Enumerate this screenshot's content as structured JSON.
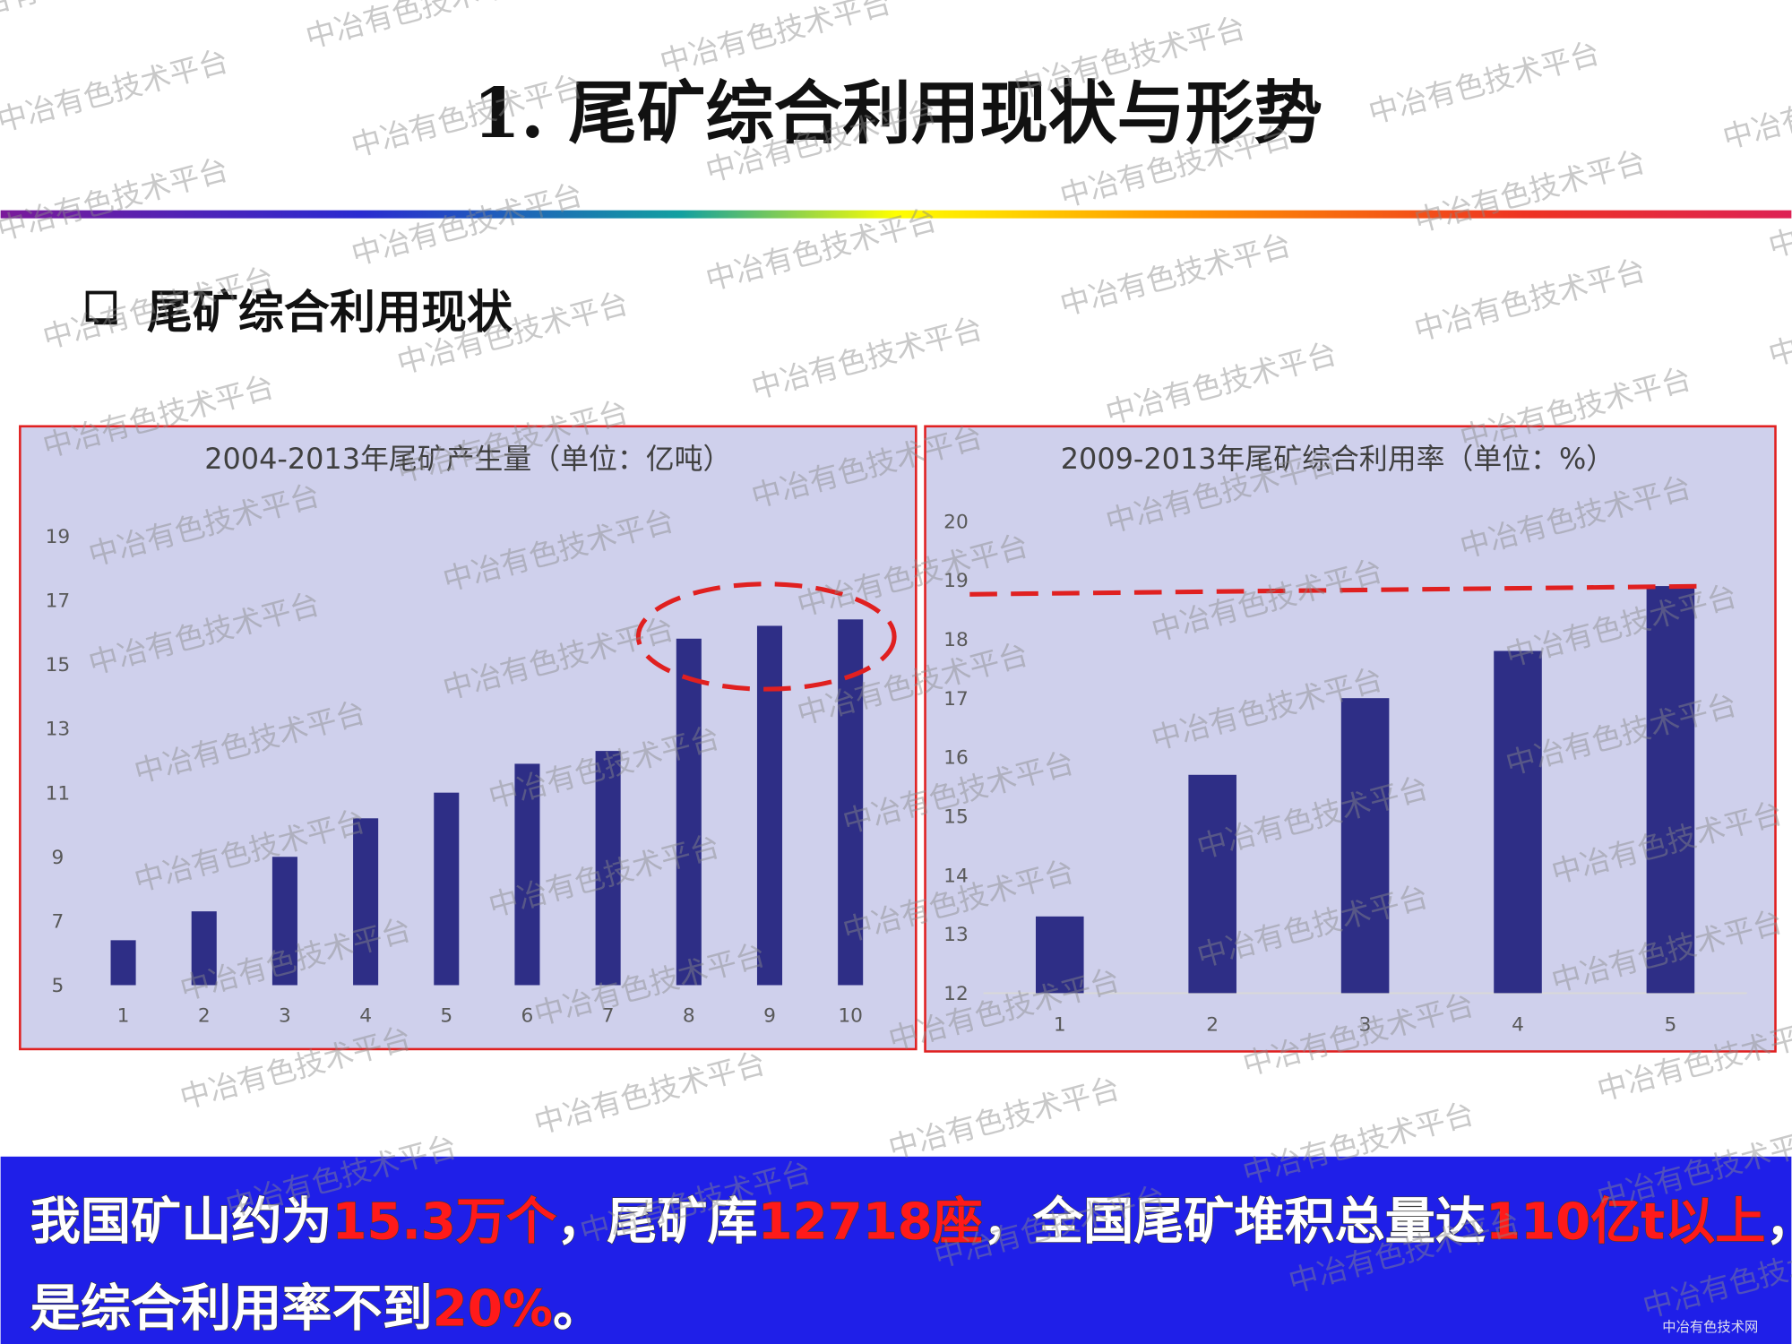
{
  "header": {
    "title": "1.  尾矿综合利用现状与形势"
  },
  "section": {
    "heading": "尾矿综合利用现状"
  },
  "chart_data": [
    {
      "type": "bar",
      "title": "2004-2013年尾矿产生量（单位：亿吨）",
      "categories": [
        "1",
        "2",
        "3",
        "4",
        "5",
        "6",
        "7",
        "8",
        "9",
        "10"
      ],
      "values": [
        6.4,
        7.3,
        9.0,
        10.2,
        11.0,
        11.9,
        12.3,
        15.8,
        16.2,
        16.4
      ],
      "color": "#2e2e86",
      "ylim": [
        5,
        19
      ],
      "yticks": [
        5,
        7,
        9,
        11,
        13,
        15,
        17,
        19
      ],
      "grid": false
    },
    {
      "type": "bar",
      "title": "2009-2013年尾矿综合利用率（单位：%）",
      "categories": [
        "1",
        "2",
        "3",
        "4",
        "5"
      ],
      "values": [
        13.3,
        15.7,
        17.0,
        17.8,
        18.9
      ],
      "color": "#2e2e86",
      "ylim": [
        12,
        20
      ],
      "yticks": [
        12,
        13,
        14,
        15,
        16,
        17,
        18,
        19,
        20
      ],
      "grid": false
    }
  ],
  "summary": {
    "lines": [
      [
        {
          "text": "我国矿山约为",
          "color": "#ffffff"
        },
        {
          "text": "15.3万个",
          "color": "#ff1a1a"
        },
        {
          "text": "，尾矿库",
          "color": "#ffffff"
        },
        {
          "text": "12718座",
          "color": "#ff1a1a"
        },
        {
          "text": "，全国尾矿堆积总量达",
          "color": "#ffffff"
        },
        {
          "text": "110亿t以上",
          "color": "#ff1a1a"
        },
        {
          "text": "，但",
          "color": "#ffffff"
        }
      ],
      [
        {
          "text": "是综合利用率不到",
          "color": "#ffffff"
        },
        {
          "text": "20%",
          "color": "#ff1a1a"
        },
        {
          "text": "。",
          "color": "#ffffff"
        }
      ]
    ]
  },
  "watermark": "中冶有色技术平台",
  "logo_text": "中冶有色技术网"
}
